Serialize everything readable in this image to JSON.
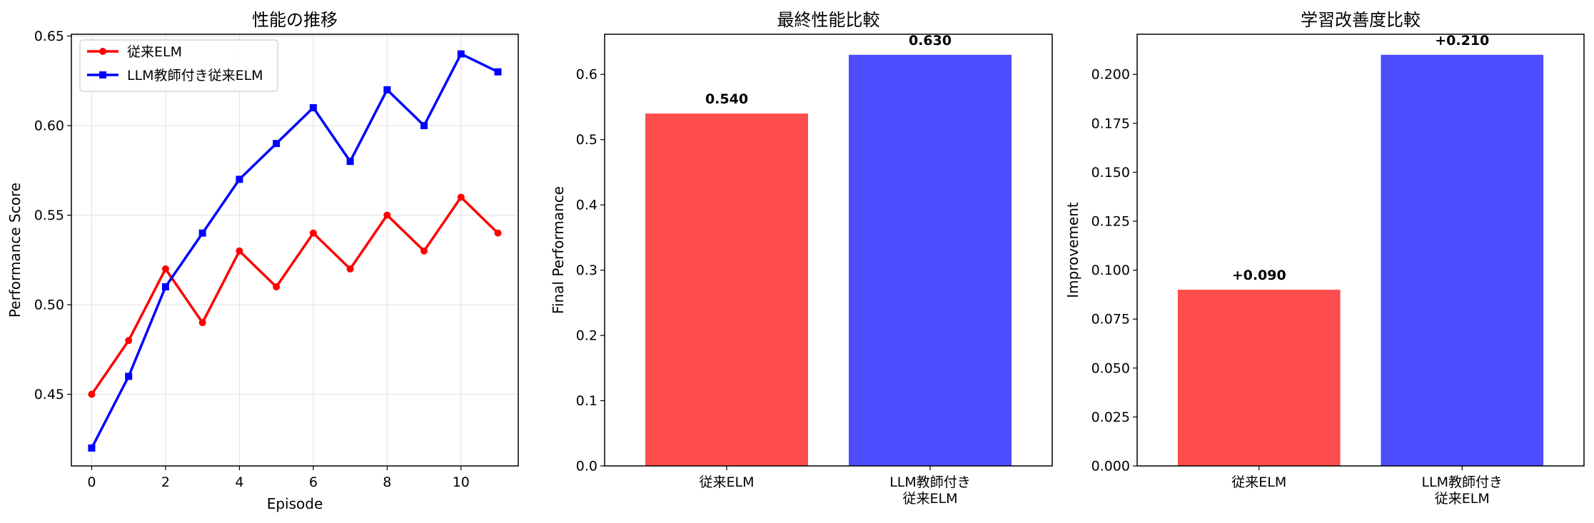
{
  "chart_data": [
    {
      "type": "line",
      "title": "性能の推移",
      "xlabel": "Episode",
      "ylabel": "Performance Score",
      "x": [
        0,
        1,
        2,
        3,
        4,
        5,
        6,
        7,
        8,
        9,
        10,
        11
      ],
      "xlim": [
        -0.55,
        11.55
      ],
      "ylim": [
        0.41,
        0.651
      ],
      "xticks": [
        0,
        2,
        4,
        6,
        8,
        10
      ],
      "yticks": [
        0.45,
        0.5,
        0.55,
        0.6,
        0.65
      ],
      "ytick_labels": [
        "0.45",
        "0.50",
        "0.55",
        "0.60",
        "0.65"
      ],
      "grid": true,
      "legend_position": "top-left",
      "series": [
        {
          "name": "従来ELM",
          "color": "#ff0000",
          "marker": "circle",
          "values": [
            0.45,
            0.48,
            0.52,
            0.49,
            0.53,
            0.51,
            0.54,
            0.52,
            0.55,
            0.53,
            0.56,
            0.54
          ]
        },
        {
          "name": "LLM教師付き従来ELM",
          "color": "#0000ff",
          "marker": "square",
          "values": [
            0.42,
            0.46,
            0.51,
            0.54,
            0.57,
            0.59,
            0.61,
            0.58,
            0.62,
            0.6,
            0.64,
            0.63
          ]
        }
      ]
    },
    {
      "type": "bar",
      "title": "最終性能比較",
      "xlabel": "",
      "ylabel": "Final Performance",
      "categories": [
        [
          "従来ELM"
        ],
        [
          "LLM教師付き",
          "従来ELM"
        ]
      ],
      "values": [
        0.54,
        0.63
      ],
      "value_labels": [
        "0.540",
        "0.630"
      ],
      "colors": [
        "#ff4d4d",
        "#4d4dff"
      ],
      "ylim": [
        0,
        0.6615
      ],
      "yticks": [
        0,
        0.1,
        0.2,
        0.3,
        0.4,
        0.5,
        0.6
      ],
      "ytick_labels": [
        "0.0",
        "0.1",
        "0.2",
        "0.3",
        "0.4",
        "0.5",
        "0.6"
      ]
    },
    {
      "type": "bar",
      "title": "学習改善度比較",
      "xlabel": "",
      "ylabel": "Improvement",
      "categories": [
        [
          "従来ELM"
        ],
        [
          "LLM教師付き",
          "従来ELM"
        ]
      ],
      "values": [
        0.09,
        0.21
      ],
      "value_labels": [
        "+0.090",
        "+0.210"
      ],
      "colors": [
        "#ff4d4d",
        "#4d4dff"
      ],
      "ylim": [
        0,
        0.2205
      ],
      "yticks": [
        0,
        0.025,
        0.05,
        0.075,
        0.1,
        0.125,
        0.15,
        0.175,
        0.2
      ],
      "ytick_labels": [
        "0.000",
        "0.025",
        "0.050",
        "0.075",
        "0.100",
        "0.125",
        "0.150",
        "0.175",
        "0.200"
      ]
    }
  ]
}
